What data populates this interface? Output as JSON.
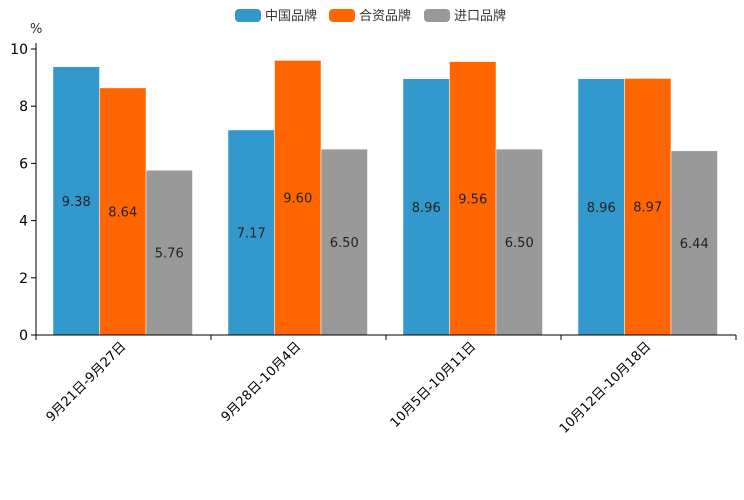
{
  "chart_data": {
    "type": "bar",
    "title": "",
    "xlabel": "",
    "ylabel": "%",
    "ylim": [
      0,
      10
    ],
    "yticks": [
      0,
      2,
      4,
      6,
      8,
      10
    ],
    "legend_position": "top-center",
    "grid": false,
    "categories": [
      "9月21日-9月27日",
      "9月28日-10月4日",
      "10月5日-10月11日",
      "10月12日-10月18日"
    ],
    "series": [
      {
        "name": "中国品牌",
        "color": "#3399cc",
        "values": [
          9.38,
          7.17,
          8.96,
          8.96
        ],
        "labels": [
          "9.38",
          "7.17",
          "8.96",
          "8.96"
        ]
      },
      {
        "name": "合资品牌",
        "color": "#ff6600",
        "values": [
          8.64,
          9.6,
          9.56,
          8.97
        ],
        "labels": [
          "8.64",
          "9.60",
          "9.56",
          "8.97"
        ]
      },
      {
        "name": "进口品牌",
        "color": "#999999",
        "values": [
          5.76,
          6.5,
          6.5,
          6.44
        ],
        "labels": [
          "5.76",
          "6.50",
          "6.50",
          "6.44"
        ]
      }
    ]
  }
}
